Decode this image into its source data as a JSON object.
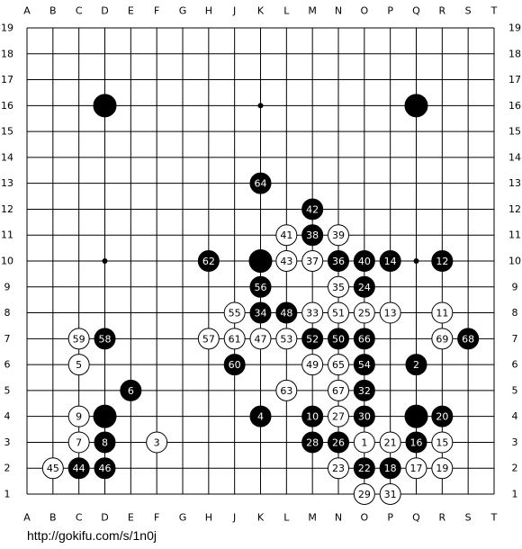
{
  "columns": [
    "A",
    "B",
    "C",
    "D",
    "E",
    "F",
    "G",
    "H",
    "J",
    "K",
    "L",
    "M",
    "N",
    "O",
    "P",
    "Q",
    "R",
    "S",
    "T"
  ],
  "rows": [
    19,
    18,
    17,
    16,
    15,
    14,
    13,
    12,
    11,
    10,
    9,
    8,
    7,
    6,
    5,
    4,
    3,
    2,
    1
  ],
  "stones": [
    {
      "point": "D16",
      "color": "black"
    },
    {
      "point": "Q16",
      "color": "black"
    },
    {
      "point": "K10",
      "color": "black"
    },
    {
      "point": "D4",
      "color": "black"
    },
    {
      "point": "Q4",
      "color": "black"
    },
    {
      "point": "O3",
      "color": "white",
      "label": 1
    },
    {
      "point": "Q6",
      "color": "black",
      "label": 2
    },
    {
      "point": "F3",
      "color": "white",
      "label": 3
    },
    {
      "point": "K4",
      "color": "black",
      "label": 4
    },
    {
      "point": "C6",
      "color": "white",
      "label": 5
    },
    {
      "point": "E5",
      "color": "black",
      "label": 6
    },
    {
      "point": "C3",
      "color": "white",
      "label": 7
    },
    {
      "point": "D3",
      "color": "black",
      "label": 8
    },
    {
      "point": "C4",
      "color": "white",
      "label": 9
    },
    {
      "point": "M4",
      "color": "black",
      "label": 10
    },
    {
      "point": "R8",
      "color": "white",
      "label": 11
    },
    {
      "point": "R10",
      "color": "black",
      "label": 12
    },
    {
      "point": "P8",
      "color": "white",
      "label": 13
    },
    {
      "point": "P10",
      "color": "black",
      "label": 14
    },
    {
      "point": "R3",
      "color": "white",
      "label": 15
    },
    {
      "point": "Q3",
      "color": "black",
      "label": 16
    },
    {
      "point": "Q2",
      "color": "white",
      "label": 17
    },
    {
      "point": "P2",
      "color": "black",
      "label": 18
    },
    {
      "point": "R2",
      "color": "white",
      "label": 19
    },
    {
      "point": "R4",
      "color": "black",
      "label": 20
    },
    {
      "point": "P3",
      "color": "white",
      "label": 21
    },
    {
      "point": "O2",
      "color": "black",
      "label": 22
    },
    {
      "point": "N2",
      "color": "white",
      "label": 23
    },
    {
      "point": "O9",
      "color": "black",
      "label": 24
    },
    {
      "point": "O8",
      "color": "white",
      "label": 25
    },
    {
      "point": "N3",
      "color": "black",
      "label": 26
    },
    {
      "point": "N4",
      "color": "white",
      "label": 27
    },
    {
      "point": "M3",
      "color": "black",
      "label": 28
    },
    {
      "point": "O1",
      "color": "white",
      "label": 29
    },
    {
      "point": "O4",
      "color": "black",
      "label": 30
    },
    {
      "point": "P1",
      "color": "white",
      "label": 31
    },
    {
      "point": "O5",
      "color": "black",
      "label": 32
    },
    {
      "point": "M8",
      "color": "white",
      "label": 33
    },
    {
      "point": "K8",
      "color": "black",
      "label": 34
    },
    {
      "point": "N9",
      "color": "white",
      "label": 35
    },
    {
      "point": "N10",
      "color": "black",
      "label": 36
    },
    {
      "point": "M10",
      "color": "white",
      "label": 37
    },
    {
      "point": "M11",
      "color": "black",
      "label": 38
    },
    {
      "point": "N11",
      "color": "white",
      "label": 39
    },
    {
      "point": "O10",
      "color": "black",
      "label": 40
    },
    {
      "point": "L11",
      "color": "white",
      "label": 41
    },
    {
      "point": "M12",
      "color": "black",
      "label": 42
    },
    {
      "point": "L10",
      "color": "white",
      "label": 43
    },
    {
      "point": "C2",
      "color": "black",
      "label": 44
    },
    {
      "point": "B2",
      "color": "white",
      "label": 45
    },
    {
      "point": "D2",
      "color": "black",
      "label": 46
    },
    {
      "point": "K7",
      "color": "white",
      "label": 47
    },
    {
      "point": "L8",
      "color": "black",
      "label": 48
    },
    {
      "point": "M6",
      "color": "white",
      "label": 49
    },
    {
      "point": "N7",
      "color": "black",
      "label": 50
    },
    {
      "point": "N8",
      "color": "white",
      "label": 51
    },
    {
      "point": "M7",
      "color": "black",
      "label": 52
    },
    {
      "point": "L7",
      "color": "white",
      "label": 53
    },
    {
      "point": "O6",
      "color": "black",
      "label": 54
    },
    {
      "point": "J8",
      "color": "white",
      "label": 55
    },
    {
      "point": "K9",
      "color": "black",
      "label": 56
    },
    {
      "point": "H7",
      "color": "white",
      "label": 57
    },
    {
      "point": "D7",
      "color": "black",
      "label": 58
    },
    {
      "point": "C7",
      "color": "white",
      "label": 59
    },
    {
      "point": "J6",
      "color": "black",
      "label": 60
    },
    {
      "point": "J7",
      "color": "white",
      "label": 61
    },
    {
      "point": "H10",
      "color": "black",
      "label": 62
    },
    {
      "point": "L5",
      "color": "white",
      "label": 63
    },
    {
      "point": "K13",
      "color": "black",
      "label": 64
    },
    {
      "point": "N6",
      "color": "white",
      "label": 65
    },
    {
      "point": "O7",
      "color": "black",
      "label": 66
    },
    {
      "point": "N5",
      "color": "white",
      "label": 67
    },
    {
      "point": "S7",
      "color": "black",
      "label": 68
    },
    {
      "point": "R7",
      "color": "white",
      "label": 69
    }
  ],
  "url": "http://gokifu.com/s/1n0j"
}
